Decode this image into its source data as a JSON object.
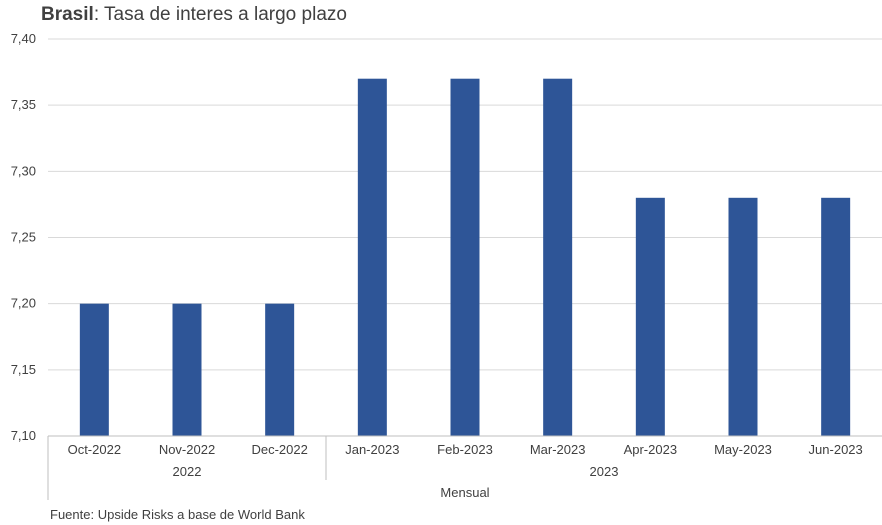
{
  "title": {
    "bold": "Brasil",
    "rest": ": Tasa de interes a largo plazo"
  },
  "source": "Fuente: Upside Risks a base de World Bank",
  "colors": {
    "bar": "#2e5597",
    "grid": "#d9d9d9",
    "axis": "#bfbfbf",
    "text": "#404040"
  },
  "chart_data": {
    "type": "bar",
    "categories": [
      "Oct-2022",
      "Nov-2022",
      "Dec-2022",
      "Jan-2023",
      "Feb-2023",
      "Mar-2023",
      "Apr-2023",
      "May-2023",
      "Jun-2023"
    ],
    "values": [
      7.2,
      7.2,
      7.2,
      7.37,
      7.37,
      7.37,
      7.28,
      7.28,
      7.28
    ],
    "year_groups": [
      {
        "label": "2022",
        "count": 3
      },
      {
        "label": "2023",
        "count": 6
      }
    ],
    "frequency_label": "Mensual",
    "ylim": [
      7.1,
      7.4
    ],
    "yticks": [
      "7,10",
      "7,15",
      "7,20",
      "7,25",
      "7,30",
      "7,35",
      "7,40"
    ],
    "grid": true,
    "legend": "none"
  }
}
